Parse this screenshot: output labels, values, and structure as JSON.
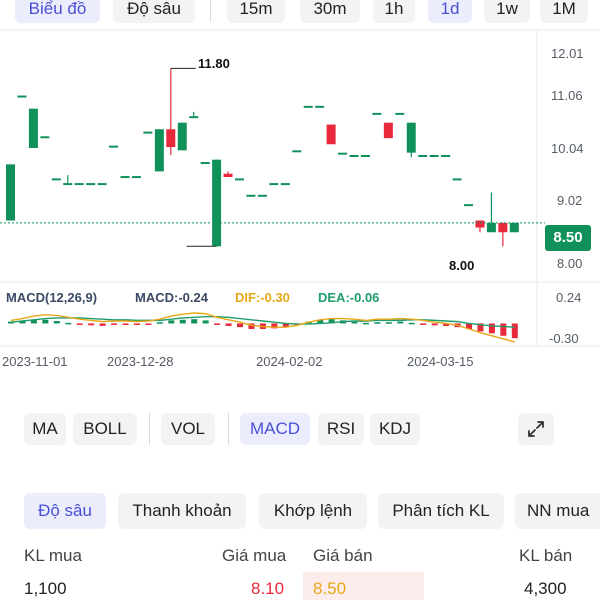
{
  "top_tabs": {
    "chart": "Biểu đồ",
    "depth": "Độ sâu",
    "intervals": [
      "15m",
      "30m",
      "1h",
      "1d",
      "1w",
      "1M"
    ],
    "active_interval": "1d"
  },
  "chart": {
    "y_ticks": [
      "12.01",
      "11.06",
      "10.04",
      "9.02",
      "8.00"
    ],
    "last_price": "8.50",
    "high_label": "11.80",
    "low_label": "8.00",
    "x_ticks": [
      "2023-11-01",
      "2023-12-28",
      "2024-02-02",
      "2024-03-15"
    ],
    "macd_ticks": [
      "0.24",
      "-0.30"
    ],
    "macd_title": "MACD(12,26,9)",
    "macd_value": "MACD:-0.24",
    "dif_value": "DIF:-0.30",
    "dea_value": "DEA:-0.06",
    "colors": {
      "up": "#11915a",
      "down": "#e8293b",
      "dif": "#e6a817",
      "dea": "#1f9d6b"
    }
  },
  "chart_data": {
    "type": "candlestick",
    "y_range": [
      7.6,
      12.3
    ],
    "candles": [
      {
        "o": 8.55,
        "c": 9.75,
        "h": 9.75,
        "l": 8.55
      },
      {
        "o": 11.22,
        "c": 11.22,
        "h": 11.22,
        "l": 11.22
      },
      {
        "o": 10.1,
        "c": 10.94,
        "h": 10.94,
        "l": 10.1
      },
      {
        "o": 10.35,
        "c": 10.35,
        "h": 10.35,
        "l": 10.35
      },
      {
        "o": 9.45,
        "c": 9.45,
        "h": 9.45,
        "l": 9.45
      },
      {
        "o": 9.35,
        "c": 9.35,
        "h": 9.52,
        "l": 9.35
      },
      {
        "o": 9.35,
        "c": 9.35,
        "h": 9.35,
        "l": 9.35
      },
      {
        "o": 9.35,
        "c": 9.35,
        "h": 9.35,
        "l": 9.35
      },
      {
        "o": 9.35,
        "c": 9.35,
        "h": 9.35,
        "l": 9.35
      },
      {
        "o": 10.15,
        "c": 10.15,
        "h": 10.15,
        "l": 10.15
      },
      {
        "o": 9.5,
        "c": 9.5,
        "h": 9.5,
        "l": 9.5
      },
      {
        "o": 9.5,
        "c": 9.5,
        "h": 9.5,
        "l": 9.5
      },
      {
        "o": 10.45,
        "c": 10.45,
        "h": 10.45,
        "l": 10.45
      },
      {
        "o": 9.6,
        "c": 10.5,
        "h": 10.5,
        "l": 9.6
      },
      {
        "o": 10.5,
        "c": 10.12,
        "h": 11.8,
        "l": 9.95
      },
      {
        "o": 10.05,
        "c": 10.64,
        "h": 10.64,
        "l": 10.05
      },
      {
        "o": 10.78,
        "c": 10.78,
        "h": 10.87,
        "l": 10.78
      },
      {
        "o": 9.8,
        "c": 9.8,
        "h": 9.8,
        "l": 9.8
      },
      {
        "o": 8.0,
        "c": 9.85,
        "h": 9.85,
        "l": 8.0
      },
      {
        "o": 9.55,
        "c": 9.48,
        "h": 9.6,
        "l": 9.48
      },
      {
        "o": 9.45,
        "c": 9.45,
        "h": 9.45,
        "l": 9.45
      },
      {
        "o": 9.1,
        "c": 9.1,
        "h": 9.1,
        "l": 9.1
      },
      {
        "o": 9.1,
        "c": 9.1,
        "h": 9.1,
        "l": 9.1
      },
      {
        "o": 9.35,
        "c": 9.35,
        "h": 9.35,
        "l": 9.35
      },
      {
        "o": 9.35,
        "c": 9.35,
        "h": 9.35,
        "l": 9.35
      },
      {
        "o": 10.05,
        "c": 10.05,
        "h": 10.05,
        "l": 10.05
      },
      {
        "o": 11.0,
        "c": 11.0,
        "h": 11.0,
        "l": 11.0
      },
      {
        "o": 11.0,
        "c": 11.0,
        "h": 11.0,
        "l": 11.0
      },
      {
        "o": 10.6,
        "c": 10.18,
        "h": 10.6,
        "l": 10.18
      },
      {
        "o": 10.0,
        "c": 10.0,
        "h": 10.0,
        "l": 10.0
      },
      {
        "o": 9.95,
        "c": 9.95,
        "h": 9.95,
        "l": 9.95
      },
      {
        "o": 9.95,
        "c": 9.95,
        "h": 9.95,
        "l": 9.95
      },
      {
        "o": 10.85,
        "c": 10.85,
        "h": 10.85,
        "l": 10.85
      },
      {
        "o": 10.64,
        "c": 10.31,
        "h": 10.64,
        "l": 10.31
      },
      {
        "o": 10.85,
        "c": 10.85,
        "h": 10.85,
        "l": 10.85
      },
      {
        "o": 10.0,
        "c": 10.64,
        "h": 10.64,
        "l": 9.9
      },
      {
        "o": 9.95,
        "c": 9.95,
        "h": 9.95,
        "l": 9.95
      },
      {
        "o": 9.95,
        "c": 9.95,
        "h": 9.95,
        "l": 9.95
      },
      {
        "o": 9.95,
        "c": 9.95,
        "h": 9.95,
        "l": 9.95
      },
      {
        "o": 9.45,
        "c": 9.45,
        "h": 9.45,
        "l": 9.45
      },
      {
        "o": 8.9,
        "c": 8.9,
        "h": 8.9,
        "l": 8.9
      },
      {
        "o": 8.55,
        "c": 8.4,
        "h": 8.55,
        "l": 8.3
      },
      {
        "o": 8.3,
        "c": 8.5,
        "h": 9.15,
        "l": 8.3
      },
      {
        "o": 8.5,
        "c": 8.3,
        "h": 8.5,
        "l": 8.0
      },
      {
        "o": 8.3,
        "c": 8.5,
        "h": 8.5,
        "l": 8.3
      }
    ],
    "macd_range": [
      -0.35,
      0.3
    ],
    "dif": [
      0.05,
      0.08,
      0.12,
      0.14,
      0.13,
      0.1,
      0.07,
      0.05,
      0.03,
      0.04,
      0.04,
      0.03,
      0.04,
      0.07,
      0.12,
      0.15,
      0.17,
      0.16,
      0.1,
      0.06,
      0.02,
      -0.03,
      -0.05,
      -0.06,
      -0.06,
      -0.03,
      0.02,
      0.06,
      0.08,
      0.08,
      0.07,
      0.05,
      0.07,
      0.07,
      0.08,
      0.07,
      0.05,
      0.02,
      0.0,
      -0.03,
      -0.09,
      -0.15,
      -0.2,
      -0.25,
      -0.3
    ],
    "dea": [
      0.02,
      0.04,
      0.06,
      0.08,
      0.09,
      0.09,
      0.09,
      0.08,
      0.07,
      0.06,
      0.06,
      0.05,
      0.05,
      0.05,
      0.07,
      0.09,
      0.1,
      0.11,
      0.11,
      0.1,
      0.08,
      0.06,
      0.04,
      0.02,
      0.0,
      -0.01,
      -0.01,
      0.0,
      0.01,
      0.03,
      0.04,
      0.04,
      0.05,
      0.05,
      0.05,
      0.06,
      0.06,
      0.05,
      0.04,
      0.03,
      0.0,
      -0.02,
      -0.04,
      -0.05,
      -0.06
    ]
  },
  "indicators": {
    "ma": "MA",
    "boll": "BOLL",
    "vol": "VOL",
    "macd": "MACD",
    "rsi": "RSI",
    "kdj": "KDJ"
  },
  "bottom_tabs": [
    "Độ sâu",
    "Thanh khoản",
    "Khớp lệnh",
    "Phân tích KL",
    "NN mua"
  ],
  "order_book": {
    "headers": {
      "bid_vol": "KL mua",
      "bid_price": "Giá mua",
      "ask_price": "Giá bán",
      "ask_vol": "KL bán"
    },
    "row1": {
      "bid_vol": "1,100",
      "bid_price": "8.10",
      "ask_price": "8.50",
      "ask_vol": "4,300"
    }
  }
}
